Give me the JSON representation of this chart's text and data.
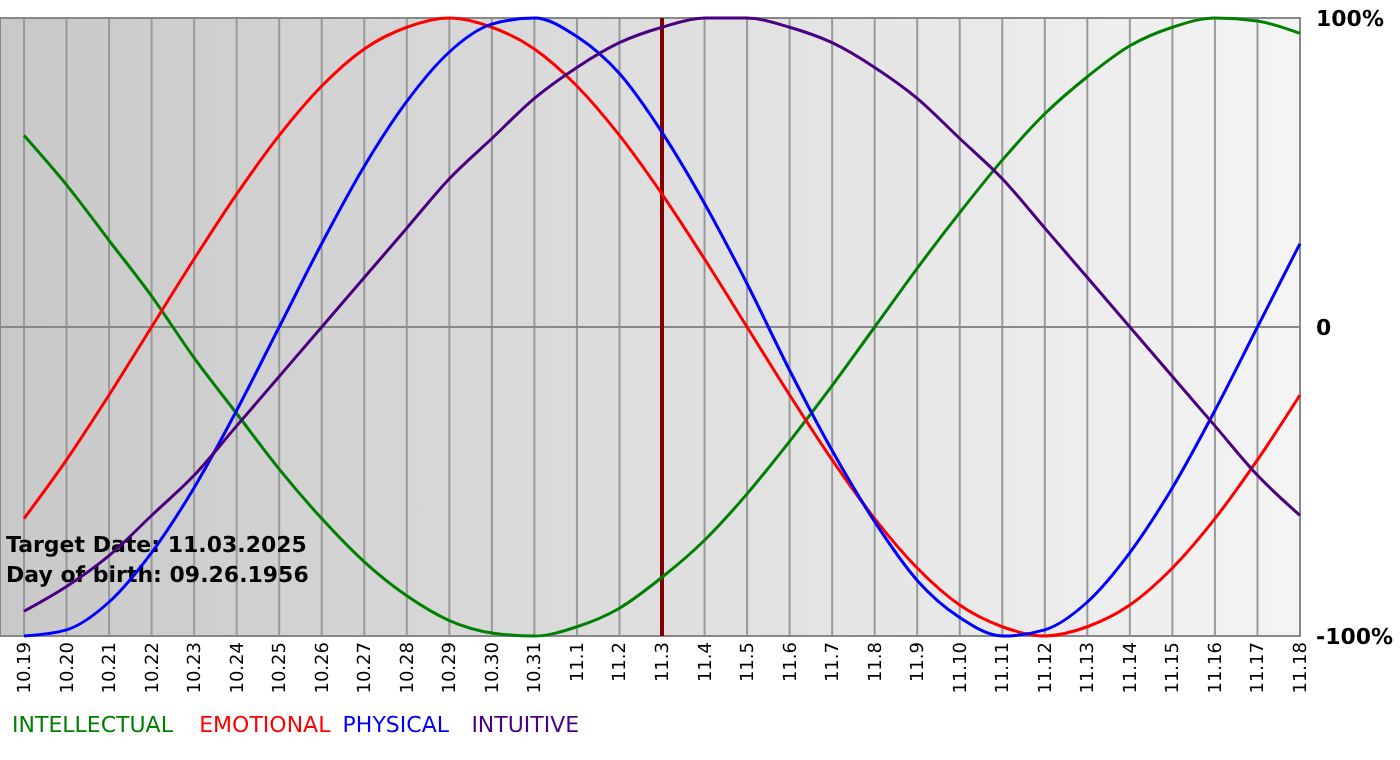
{
  "chart_data": {
    "type": "line",
    "categories": [
      "10.19",
      "10.20",
      "10.21",
      "10.22",
      "10.23",
      "10.24",
      "10.25",
      "10.26",
      "10.27",
      "10.28",
      "10.29",
      "10.30",
      "10.31",
      "11.1",
      "11.2",
      "11.3",
      "11.4",
      "11.5",
      "11.6",
      "11.7",
      "11.8",
      "11.9",
      "11.10",
      "11.11",
      "11.12",
      "11.13",
      "11.14",
      "11.15",
      "11.16",
      "11.17",
      "11.18"
    ],
    "series": [
      {
        "name": "INTELLECTUAL",
        "color": "#008000",
        "values": [
          62,
          46,
          28,
          10,
          -10,
          -28,
          -46,
          -62,
          -76,
          -87,
          -95,
          -99,
          -100,
          -97,
          -91,
          -81,
          -69,
          -54,
          -37,
          -19,
          0,
          19,
          37,
          54,
          69,
          81,
          91,
          97,
          100,
          99,
          95
        ]
      },
      {
        "name": "EMOTIONAL",
        "color": "#ff0000",
        "values": [
          -62,
          -43,
          -22,
          0,
          22,
          43,
          62,
          78,
          90,
          97,
          100,
          97,
          90,
          78,
          62,
          43,
          22,
          0,
          -22,
          -43,
          -62,
          -78,
          -90,
          -97,
          -100,
          -97,
          -90,
          -78,
          -62,
          -43,
          -22
        ]
      },
      {
        "name": "PHYSICAL",
        "color": "#0000ff",
        "values": [
          -100,
          -98,
          -89,
          -73,
          -52,
          -27,
          0,
          27,
          52,
          73,
          89,
          98,
          100,
          94,
          82,
          63,
          40,
          14,
          -14,
          -40,
          -63,
          -82,
          -94,
          -100,
          -98,
          -89,
          -73,
          -52,
          -27,
          0,
          27
        ]
      },
      {
        "name": "INTUITIVE",
        "color": "#4b0082",
        "values": [
          -92,
          -84,
          -74,
          -61,
          -48,
          -32,
          -16,
          0,
          16,
          32,
          48,
          61,
          74,
          84,
          92,
          97,
          100,
          100,
          97,
          92,
          84,
          74,
          61,
          48,
          32,
          16,
          0,
          -16,
          -32,
          -48,
          -61
        ]
      }
    ],
    "ylim": [
      -100,
      100
    ],
    "yticks": [
      {
        "value": 100,
        "label": "100%"
      },
      0,
      {
        "value": -100,
        "label": "-100%"
      }
    ],
    "grid": true,
    "legend": "bottom",
    "marker": "none",
    "line_style": "solid",
    "ref_lines": [
      {
        "axis": "x",
        "value": "11.3",
        "color": "#800000"
      }
    ],
    "annotations": [
      "Target Date: 11.03.2025",
      "Day of birth: 09.26.1956"
    ]
  }
}
